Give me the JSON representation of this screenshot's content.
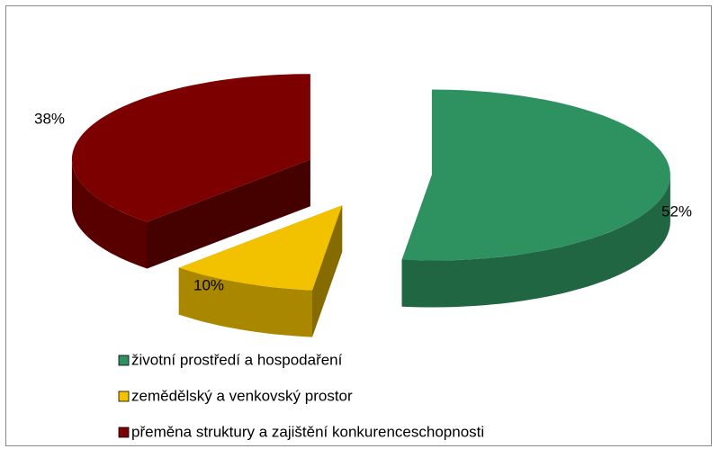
{
  "chart_data": {
    "type": "pie3d",
    "categories": [
      "životní prostředí a hospodaření",
      "zemědělský a venkovský prostor",
      "přeměna struktury a zajištění konkurenceschopnosti"
    ],
    "values": [
      52,
      10,
      38
    ],
    "value_labels": [
      "52%",
      "10%",
      "38%"
    ],
    "colors": [
      "#2e9160",
      "#f2c200",
      "#7d0000"
    ],
    "legend": "bottom"
  }
}
